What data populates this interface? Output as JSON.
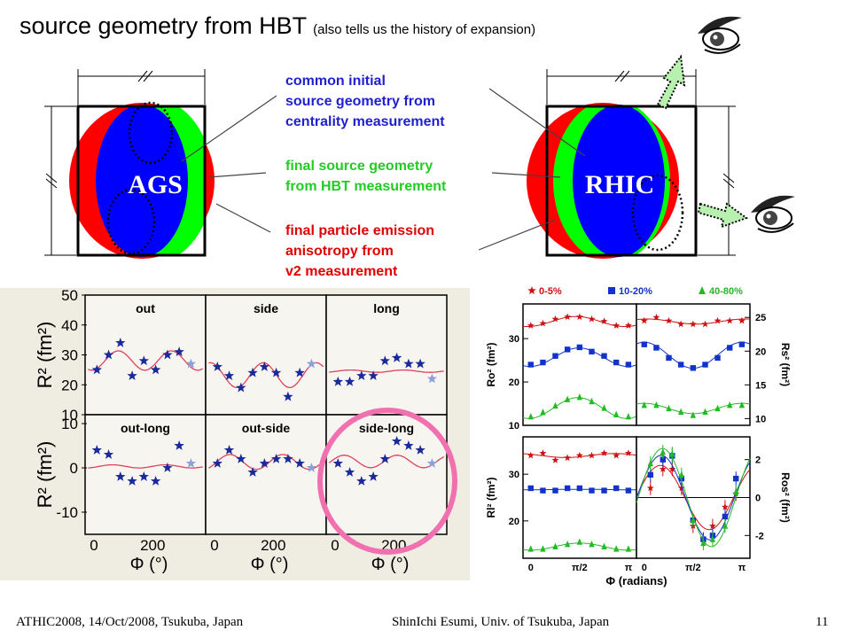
{
  "slide": {
    "title": "source geometry from HBT",
    "subtitle": "(also tells us the history of expansion)",
    "footer_left": "ATHIC2008, 14/Oct/2008, Tsukuba, Japan",
    "footer_center": "ShinIchi Esumi, Univ. of Tsukuba, Japan",
    "page_number": "11"
  },
  "diagram": {
    "left_label": "AGS",
    "right_label": "RHIC",
    "colors": {
      "emission": "#ff0000",
      "hbt": "#00ff00",
      "initial": "#0000ff"
    },
    "annotations": {
      "initial": {
        "lines": [
          "common initial",
          "source geometry from",
          "centrality measurement"
        ],
        "color": "#1f1fd0"
      },
      "hbt": {
        "lines": [
          "final source geometry",
          "from HBT measurement"
        ],
        "color": "#22cc22"
      },
      "v2": {
        "lines": [
          "final particle emission",
          "anisotropy from",
          "v2 measurement"
        ],
        "color": "#e00000"
      }
    },
    "icons": [
      "eye-icon",
      "eye-icon"
    ]
  },
  "chart_data": [
    {
      "type": "scatter",
      "name": "AGS HBT radii vs azimuthal angle",
      "ylabel": "R² (fm²)",
      "xlabel": "Φ (°)",
      "xticks": [
        "0",
        "200"
      ],
      "yticks_top": [
        "10",
        "20",
        "30",
        "40",
        "50"
      ],
      "yticks_bottom": [
        "-10",
        "0",
        "10"
      ],
      "panels": [
        {
          "label": "out",
          "x": [
            10,
            50,
            90,
            130,
            170,
            210,
            250,
            290,
            330
          ],
          "y": [
            25,
            30,
            34,
            23,
            28,
            25,
            30,
            31,
            27
          ]
        },
        {
          "label": "side",
          "x": [
            10,
            50,
            90,
            130,
            170,
            210,
            250,
            290,
            330
          ],
          "y": [
            26,
            23,
            19,
            24,
            26,
            24,
            16,
            24,
            27
          ]
        },
        {
          "label": "long",
          "x": [
            10,
            50,
            90,
            130,
            170,
            210,
            250,
            290,
            330
          ],
          "y": [
            21,
            21,
            23,
            23,
            28,
            29,
            27,
            27,
            22
          ]
        },
        {
          "label": "out-long",
          "x": [
            10,
            50,
            90,
            130,
            170,
            210,
            250,
            290,
            330
          ],
          "y": [
            4,
            3,
            -2,
            -3,
            -2,
            -3,
            0,
            5,
            1
          ]
        },
        {
          "label": "out-side",
          "x": [
            10,
            50,
            90,
            130,
            170,
            210,
            250,
            290,
            330
          ],
          "y": [
            1,
            4,
            2,
            -1,
            1,
            2,
            2,
            1,
            0
          ]
        },
        {
          "label": "side-long",
          "x": [
            10,
            50,
            90,
            130,
            170,
            210,
            250,
            290,
            330
          ],
          "y": [
            1,
            -1,
            -3,
            -2,
            2,
            6,
            5,
            4,
            1
          ]
        }
      ]
    },
    {
      "type": "scatter",
      "name": "RHIC HBT radii vs azimuthal angle",
      "xlabel": "Φ (radians)",
      "xticks": [
        "0",
        "π/2",
        "π"
      ],
      "legend": [
        {
          "name": "0-5%",
          "color": "#cc1111",
          "marker": "star"
        },
        {
          "name": "10-20%",
          "color": "#1133cc",
          "marker": "square"
        },
        {
          "name": "40-80%",
          "color": "#22bb22",
          "marker": "triangle"
        }
      ],
      "panels": [
        {
          "label": "Ro² (fm²)",
          "yticks": [
            "10",
            "20",
            "30"
          ],
          "series": [
            {
              "name": "0-5%",
              "x": [
                0,
                0.39,
                0.79,
                1.18,
                1.57,
                1.96,
                2.36,
                2.75,
                3.14
              ],
              "y": [
                33,
                33.5,
                34.5,
                35,
                35,
                34.5,
                34,
                33,
                33
              ]
            },
            {
              "name": "10-20%",
              "x": [
                0,
                0.39,
                0.79,
                1.18,
                1.57,
                1.96,
                2.36,
                2.75,
                3.14
              ],
              "y": [
                24,
                24.5,
                26,
                27.5,
                28,
                27,
                26,
                24.5,
                24
              ]
            },
            {
              "name": "40-80%",
              "x": [
                0,
                0.39,
                0.79,
                1.18,
                1.57,
                1.96,
                2.36,
                2.75,
                3.14
              ],
              "y": [
                12,
                13,
                14.5,
                16,
                16.5,
                15.5,
                14,
                12.5,
                12
              ]
            }
          ]
        },
        {
          "label": "Rs² (fm²)",
          "yticks": [
            "10",
            "15",
            "20",
            "25"
          ],
          "series": [
            {
              "name": "0-5%",
              "x": [
                0,
                0.39,
                0.79,
                1.18,
                1.57,
                1.96,
                2.36,
                2.75,
                3.14
              ],
              "y": [
                24.5,
                25,
                24.5,
                24,
                24,
                24,
                24.5,
                24.5,
                24.5
              ]
            },
            {
              "name": "10-20%",
              "x": [
                0,
                0.39,
                0.79,
                1.18,
                1.57,
                1.96,
                2.36,
                2.75,
                3.14
              ],
              "y": [
                21,
                20.5,
                19,
                18,
                17.5,
                18,
                19,
                20.5,
                21
              ]
            },
            {
              "name": "40-80%",
              "x": [
                0,
                0.39,
                0.79,
                1.18,
                1.57,
                1.96,
                2.36,
                2.75,
                3.14
              ],
              "y": [
                12,
                12,
                11.5,
                11,
                10.5,
                11,
                11.5,
                12,
                12
              ]
            }
          ]
        },
        {
          "label": "Rl² (fm²)",
          "yticks": [
            "20",
            "30"
          ],
          "series": [
            {
              "name": "0-5%",
              "x": [
                0,
                0.39,
                0.79,
                1.18,
                1.57,
                1.96,
                2.36,
                2.75,
                3.14
              ],
              "y": [
                34,
                34.5,
                33,
                33.5,
                34,
                34,
                34.5,
                34,
                34.5
              ]
            },
            {
              "name": "10-20%",
              "x": [
                0,
                0.39,
                0.79,
                1.18,
                1.57,
                1.96,
                2.36,
                2.75,
                3.14
              ],
              "y": [
                27,
                26.5,
                26.5,
                27,
                27,
                26.5,
                26.5,
                27,
                26.5
              ]
            },
            {
              "name": "40-80%",
              "x": [
                0,
                0.39,
                0.79,
                1.18,
                1.57,
                1.96,
                2.36,
                2.75,
                3.14
              ],
              "y": [
                14,
                14,
                14.5,
                15,
                15.5,
                15,
                14.5,
                14,
                14
              ]
            }
          ]
        },
        {
          "label": "Ros² (fm²)",
          "yticks": [
            "-2",
            "0",
            "2"
          ],
          "series": [
            {
              "name": "0-5%",
              "x": [
                0.2,
                0.6,
                0.9,
                1.2,
                1.57,
                1.9,
                2.2,
                2.6,
                2.95
              ],
              "y": [
                0.5,
                1.5,
                1.5,
                0.5,
                -1.5,
                -2.2,
                -1.5,
                -0.5,
                0.2
              ]
            },
            {
              "name": "10-20%",
              "x": [
                0.2,
                0.6,
                0.9,
                1.2,
                1.57,
                1.9,
                2.2,
                2.6,
                2.95
              ],
              "y": [
                1.2,
                2.0,
                2.2,
                1.0,
                -1.2,
                -2.2,
                -2.0,
                -1.0,
                1.0
              ]
            },
            {
              "name": "40-80%",
              "x": [
                0.2,
                0.6,
                0.9,
                1.2,
                1.57,
                1.9,
                2.2,
                2.6,
                2.95
              ],
              "y": [
                1.8,
                2.4,
                2.3,
                1.2,
                -1.2,
                -2.4,
                -2.2,
                -1.5,
                0.3
              ]
            }
          ]
        }
      ]
    }
  ]
}
